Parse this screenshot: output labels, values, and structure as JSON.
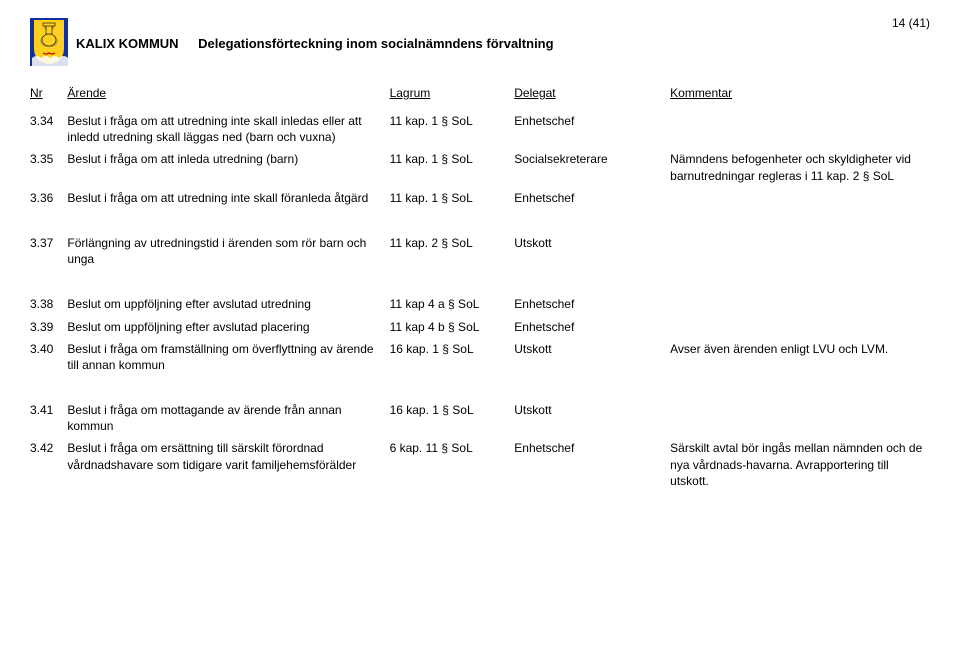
{
  "page": {
    "org_name": "KALIX KOMMUN",
    "doc_title": "Delegationsförteckning inom socialnämndens förvaltning",
    "page_indicator": "14 (41)"
  },
  "crest": {
    "shield_fill": "#ffd020",
    "bg_fill": "#1030a0",
    "tongue_fill": "#d00000"
  },
  "columns": {
    "nr": "Nr",
    "arende": "Ärende",
    "lagrum": "Lagrum",
    "delegat": "Delegat",
    "kommentar": "Kommentar"
  },
  "rows": [
    {
      "nr": "3.34",
      "arende": "Beslut i fråga om att utredning inte skall inledas eller att inledd utredning skall läggas ned (barn och vuxna)",
      "lagrum": "11 kap. 1 § SoL",
      "delegat": "Enhetschef",
      "kommentar": "",
      "gap": false
    },
    {
      "nr": "3.35",
      "arende": "Beslut i fråga om att inleda utredning (barn)",
      "lagrum": "11 kap. 1 § SoL",
      "delegat": "Socialsekreterare",
      "kommentar": "Nämndens befogenheter och skyldigheter vid barnutredningar regleras i 11 kap. 2 § SoL",
      "gap": false
    },
    {
      "nr": "3.36",
      "arende": "Beslut i fråga om att utredning inte skall föranleda åtgärd",
      "lagrum": "11 kap. 1 § SoL",
      "delegat": "Enhetschef",
      "kommentar": "",
      "gap": false
    },
    {
      "nr": "3.37",
      "arende": "Förlängning av utredningstid i ärenden som rör barn och unga",
      "lagrum": "11 kap. 2 § SoL",
      "delegat": "Utskott",
      "kommentar": "",
      "gap": true
    },
    {
      "nr": "3.38",
      "arende": "Beslut om uppföljning efter avslutad utredning",
      "lagrum": "11 kap 4 a § SoL",
      "delegat": "Enhetschef",
      "kommentar": "",
      "gap": true
    },
    {
      "nr": "3.39",
      "arende": "Beslut om uppföljning efter avslutad placering",
      "lagrum": "11 kap 4 b § SoL",
      "delegat": "Enhetschef",
      "kommentar": "",
      "gap": false
    },
    {
      "nr": "3.40",
      "arende": "Beslut i fråga om framställning om överflyttning av ärende till annan kommun",
      "lagrum": "16 kap. 1 § SoL",
      "delegat": "Utskott",
      "kommentar": "Avser även ärenden enligt LVU och LVM.",
      "gap": false
    },
    {
      "nr": "3.41",
      "arende": "Beslut i fråga om mottagande av ärende från annan kommun",
      "lagrum": "16 kap. 1 § SoL",
      "delegat": "Utskott",
      "kommentar": "",
      "gap": true
    },
    {
      "nr": "3.42",
      "arende": "Beslut i fråga om ersättning till särskilt förordnad vårdnadshavare som tidigare varit familjehemsförälder",
      "lagrum": "6 kap. 11 § SoL",
      "delegat": "Enhetschef",
      "kommentar": "Särskilt avtal bör ingås mellan nämnden och de nya vårdnads-havarna. Avrapportering till utskott.",
      "gap": false
    }
  ]
}
